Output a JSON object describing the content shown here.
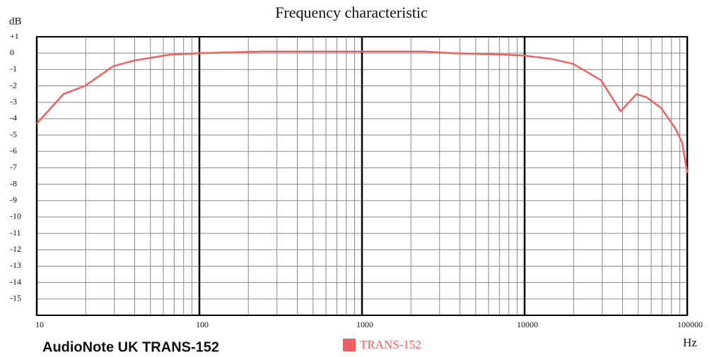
{
  "chart_data": {
    "type": "line",
    "title": "Frequency characteristic",
    "y_label": "dB",
    "x_label": "Hz",
    "caption": "AudioNote UK TRANS-152",
    "log_x": true,
    "grid": true,
    "x": [
      10,
      14.6,
      19.8,
      29.5,
      39.8,
      65,
      100,
      240,
      1000,
      2400,
      3600,
      8000,
      10000,
      14600,
      19800,
      29500,
      39000,
      48700,
      56500,
      69000,
      84000,
      93000,
      100000
    ],
    "series": [
      {
        "name": "TRANS-152",
        "color": "#f06060",
        "values": [
          -4.3,
          -2.5,
          -2.0,
          -0.8,
          -0.45,
          -0.1,
          0,
          0.1,
          0.1,
          0.1,
          0,
          -0.1,
          -0.15,
          -0.35,
          -0.65,
          -1.65,
          -3.55,
          -2.5,
          -2.7,
          -3.35,
          -4.55,
          -5.45,
          -7.3
        ]
      }
    ],
    "xlim": [
      10,
      100000
    ],
    "xticks": [
      10,
      100,
      1000,
      10000,
      100000
    ],
    "ylim": [
      -16,
      1
    ],
    "yticks": [
      {
        "value": 1,
        "label": "+1"
      },
      0,
      -1,
      -2,
      -3,
      -4,
      -5,
      -6,
      -7,
      -8,
      -9,
      -10,
      -11,
      -12,
      -13,
      -14,
      -15
    ]
  }
}
